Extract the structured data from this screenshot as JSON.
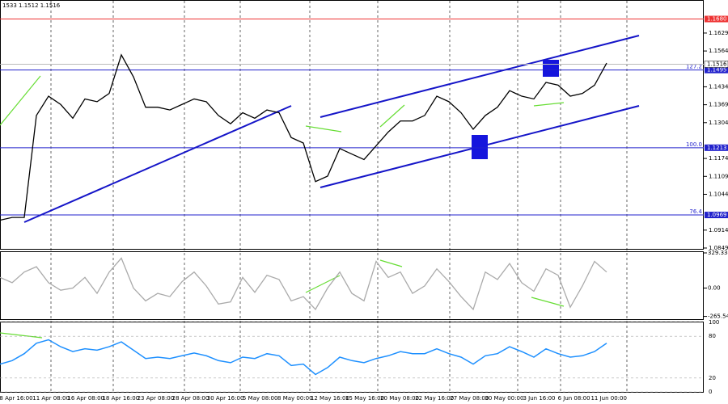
{
  "header": {
    "ohlc": "1533 1.1512 1.1516"
  },
  "price_axis": {
    "ylim": [
      1.0846,
      1.1749
    ],
    "ticks": [
      1.1629,
      1.1564,
      1.1434,
      1.1369,
      1.1304,
      1.1174,
      1.1109,
      1.1044,
      1.0914,
      1.0849
    ],
    "level_top": {
      "value": 1.168,
      "label": "1.1680"
    },
    "current": 1.1516,
    "levels": [
      {
        "value": 1.1495,
        "label": "1.1495",
        "fib": "127.2"
      },
      {
        "value": 1.1213,
        "label": "1.1213",
        "fib": "100.0"
      },
      {
        "value": 1.0969,
        "label": "1.0969",
        "fib": "76.4"
      }
    ]
  },
  "price": {
    "values": [
      1.095,
      1.096,
      1.096,
      1.133,
      1.14,
      1.137,
      1.132,
      1.139,
      1.138,
      1.141,
      1.155,
      1.147,
      1.136,
      1.136,
      1.135,
      1.137,
      1.139,
      1.138,
      1.133,
      1.13,
      1.134,
      1.132,
      1.135,
      1.134,
      1.125,
      1.123,
      1.109,
      1.111,
      1.121,
      1.119,
      1.117,
      1.122,
      1.127,
      1.131,
      1.131,
      1.133,
      1.14,
      1.138,
      1.134,
      1.128,
      1.133,
      1.136,
      1.142,
      1.14,
      1.139,
      1.145,
      1.144,
      1.14,
      1.141,
      1.144,
      1.152
    ]
  },
  "cci": {
    "ylim": [
      -299,
      337
    ],
    "ticks": [
      {
        "value": 329.3341,
        "label": "329.3341"
      },
      {
        "value": 0,
        "label": "0.00"
      },
      {
        "value": -265.544,
        "label": "-265.544"
      }
    ],
    "values": [
      100,
      50,
      150,
      200,
      50,
      -20,
      0,
      100,
      -50,
      150,
      280,
      0,
      -120,
      -50,
      -80,
      60,
      150,
      20,
      -150,
      -130,
      100,
      -40,
      120,
      80,
      -120,
      -80,
      -200,
      0,
      150,
      -50,
      -120,
      250,
      100,
      150,
      -50,
      20,
      180,
      60,
      -80,
      -200,
      150,
      80,
      230,
      50,
      -30,
      180,
      120,
      -180,
      20,
      250,
      150
    ]
  },
  "rsi": {
    "ylim": [
      0,
      100
    ],
    "ticks": [
      100,
      80,
      20,
      0
    ],
    "values": [
      40,
      45,
      55,
      70,
      75,
      65,
      58,
      62,
      60,
      65,
      72,
      60,
      48,
      50,
      48,
      52,
      56,
      52,
      45,
      42,
      50,
      48,
      55,
      52,
      38,
      40,
      25,
      35,
      50,
      45,
      42,
      48,
      52,
      58,
      55,
      55,
      62,
      55,
      50,
      40,
      52,
      55,
      65,
      58,
      50,
      62,
      55,
      50,
      52,
      58,
      70
    ]
  },
  "dates": [
    "8 Apr 16:00",
    "11 Apr 08:00",
    "16 Apr 08:00",
    "18 Apr 16:00",
    "23 Apr 08:00",
    "28 Apr 08:00",
    "30 Apr 16:00",
    "5 May 08:00",
    "8 May 00:00",
    "12 May 16:00",
    "15 May 16:00",
    "20 May 08:00",
    "22 May 16:00",
    "27 May 08:00",
    "30 May 00:00",
    "3 Jun 16:00",
    "6 Jun 08:00",
    "11 Jun 00:00"
  ]
}
